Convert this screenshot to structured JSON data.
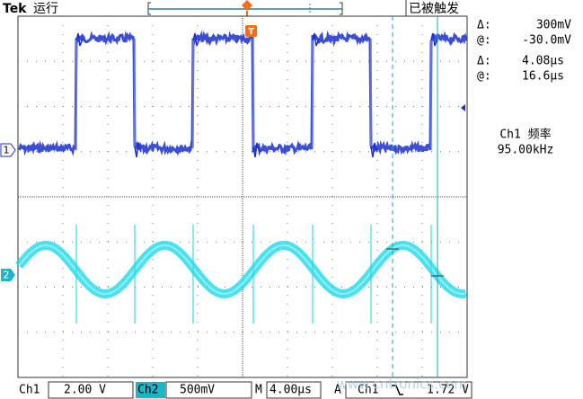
{
  "header": {
    "brand": "Tek",
    "status": "运行",
    "trigger_state": "已被触发",
    "trigger_marker": "T"
  },
  "readouts": [
    {
      "label": "Δ:",
      "value": "300mV"
    },
    {
      "label": "@:",
      "value": "-30.0mV"
    },
    {
      "label": "Δ:",
      "value": "4.08µs"
    },
    {
      "label": "@:",
      "value": "16.6µs"
    }
  ],
  "measurement": {
    "label": "Ch1 频率",
    "value": "95.00kHz"
  },
  "channel_markers": [
    "1",
    "2"
  ],
  "footer": {
    "ch1_label": "Ch1",
    "ch1_scale": "2.00 V",
    "ch2_label": "Ch2",
    "ch2_scale": "500mV",
    "time_label": "M",
    "time_scale": "4.00µs",
    "trigger_label": "A",
    "trigger_source": "Ch1",
    "trigger_level": "1.72 V"
  },
  "watermark": "www.cntronics.com"
}
